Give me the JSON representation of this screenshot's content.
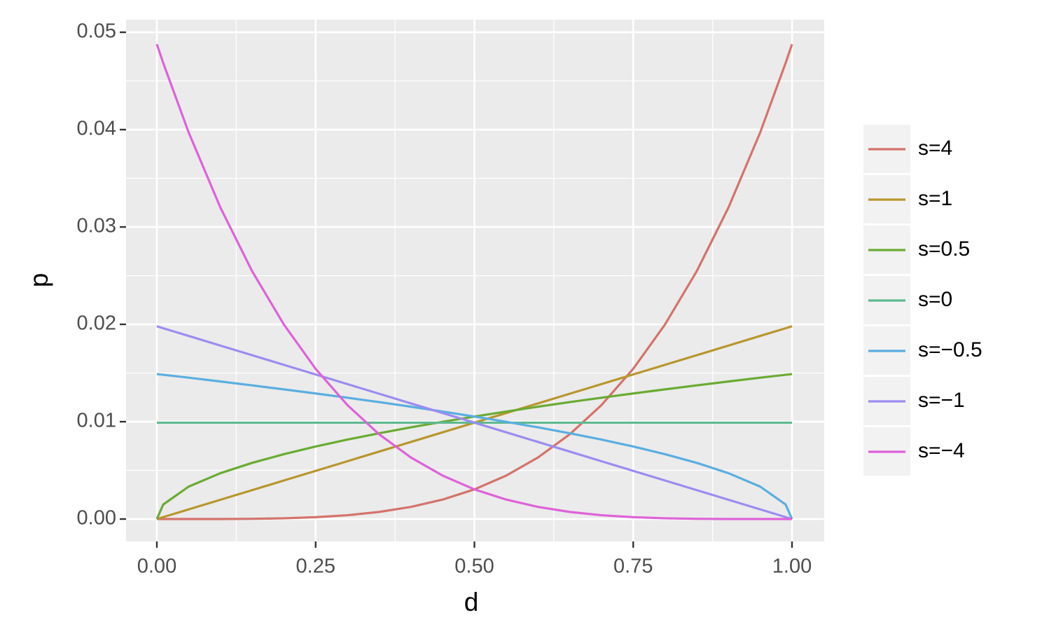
{
  "chart_data": {
    "type": "line",
    "x_label": "d",
    "y_label": "p",
    "x": [
      0,
      0.01,
      0.05,
      0.1,
      0.15,
      0.2,
      0.25,
      0.3,
      0.35,
      0.4,
      0.45,
      0.5,
      0.55,
      0.6,
      0.65,
      0.7,
      0.75,
      0.8,
      0.85,
      0.9,
      0.95,
      0.99,
      1
    ],
    "series": [
      {
        "name": "s=4",
        "color": "#d4736b",
        "values": [
          0,
          0,
          3e-07,
          4.9e-06,
          2.47e-05,
          7.8e-05,
          0.000191,
          0.000395,
          0.000732,
          0.001249,
          0.002,
          0.003048,
          0.004463,
          0.006321,
          0.008706,
          0.01171,
          0.015432,
          0.019977,
          0.02546,
          0.032,
          0.039726,
          0.046851,
          0.048773
        ]
      },
      {
        "name": "s=1",
        "color": "#b8962e",
        "values": [
          0,
          0.000198,
          0.00099,
          0.00198,
          0.00297,
          0.00396,
          0.00495,
          0.00594,
          0.00693,
          0.00792,
          0.00891,
          0.0099,
          0.01089,
          0.01188,
          0.01287,
          0.01386,
          0.01485,
          0.01584,
          0.01683,
          0.01782,
          0.01881,
          0.0196,
          0.0198
        ]
      },
      {
        "name": "s=0.5",
        "color": "#6aab33",
        "values": [
          0,
          0.001489,
          0.00333,
          0.00471,
          0.00577,
          0.00666,
          0.00745,
          0.00816,
          0.00881,
          0.00942,
          0.00999,
          0.01053,
          0.01104,
          0.01154,
          0.01201,
          0.01246,
          0.0129,
          0.01332,
          0.01373,
          0.01413,
          0.01452,
          0.01482,
          0.01489
        ]
      },
      {
        "name": "s=0",
        "color": "#5fb98f",
        "values": [
          0.009901,
          0.009901,
          0.009901,
          0.009901,
          0.009901,
          0.009901,
          0.009901,
          0.009901,
          0.009901,
          0.009901,
          0.009901,
          0.009901,
          0.009901,
          0.009901,
          0.009901,
          0.009901,
          0.009901,
          0.009901,
          0.009901,
          0.009901,
          0.009901,
          0.009901,
          0.009901
        ]
      },
      {
        "name": "s=−0.5",
        "color": "#5aaee0",
        "values": [
          0.01489,
          0.01482,
          0.01452,
          0.01413,
          0.01373,
          0.01332,
          0.0129,
          0.01246,
          0.01201,
          0.01154,
          0.01104,
          0.01053,
          0.00999,
          0.00942,
          0.00881,
          0.00816,
          0.00745,
          0.00666,
          0.00577,
          0.00471,
          0.00333,
          0.001489,
          0
        ]
      },
      {
        "name": "s=−1",
        "color": "#9b8cf0",
        "values": [
          0.0198,
          0.0196,
          0.01881,
          0.01782,
          0.01683,
          0.01584,
          0.01485,
          0.01386,
          0.01287,
          0.01188,
          0.01089,
          0.0099,
          0.00891,
          0.00792,
          0.00693,
          0.00594,
          0.00495,
          0.00396,
          0.00297,
          0.00198,
          0.00099,
          0.000198,
          0
        ]
      },
      {
        "name": "s=−4",
        "color": "#de62d8",
        "values": [
          0.048773,
          0.046851,
          0.039726,
          0.032,
          0.02546,
          0.019977,
          0.015432,
          0.01171,
          0.008706,
          0.006321,
          0.004463,
          0.003048,
          0.002,
          0.001249,
          0.000732,
          0.000395,
          0.000191,
          7.8e-05,
          2.47e-05,
          4.9e-06,
          3e-07,
          0,
          0
        ]
      }
    ],
    "xlim": [
      -0.0485,
      1.0507
    ],
    "ylim": [
      -0.0023,
      0.0513
    ],
    "xticks": [
      {
        "value": 0,
        "label": "0.00"
      },
      0.25,
      {
        "value": 0.5,
        "label": "0.50"
      },
      0.75,
      {
        "value": 1,
        "label": "1.00"
      }
    ],
    "yticks": [
      {
        "value": 0,
        "label": "0.00"
      },
      0.01,
      0.02,
      0.03,
      0.04,
      0.05
    ],
    "grid": true,
    "legend": "right"
  }
}
